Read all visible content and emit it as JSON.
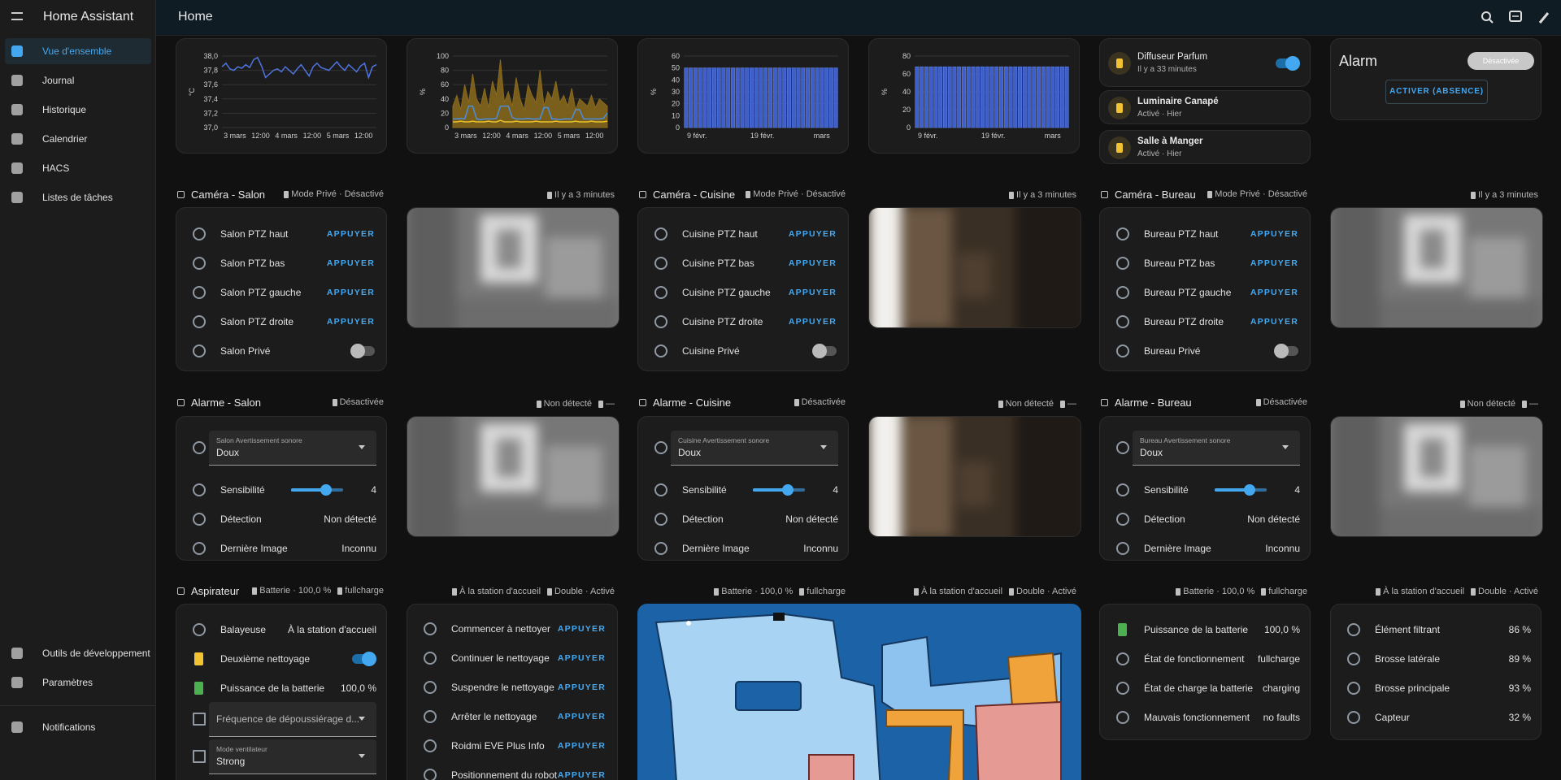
{
  "header": {
    "app": "Home Assistant",
    "title": "Home"
  },
  "sidebar": {
    "items": [
      "Vue d'ensemble",
      "Journal",
      "Historique",
      "Calendrier",
      "HACS",
      "Listes de tâches"
    ],
    "bottom": [
      "Outils de développement",
      "Paramètres"
    ],
    "notifications": "Notifications"
  },
  "charts": [
    {
      "type": "line",
      "unit": "°C",
      "color": "#4f74e0",
      "ylim": [
        37,
        38
      ],
      "yticks": [
        {
          "value": 37,
          "label": "37,0"
        },
        {
          "value": 37.2,
          "label": "37,2"
        },
        {
          "value": 37.4,
          "label": "37,4"
        },
        {
          "value": 37.6,
          "label": "37,6"
        },
        {
          "value": 37.8,
          "label": "37,8"
        },
        {
          "value": 38,
          "label": "38,0"
        }
      ],
      "xlabels": [
        "3 mars",
        "12:00",
        "4 mars",
        "12:00",
        "5 mars",
        "12:00"
      ],
      "values": [
        37.85,
        37.9,
        37.82,
        37.8,
        37.85,
        37.83,
        37.88,
        37.84,
        37.95,
        37.98,
        37.86,
        37.7,
        37.75,
        37.8,
        37.82,
        37.78,
        37.85,
        37.8,
        37.75,
        37.82,
        37.88,
        37.8,
        37.72,
        37.85,
        37.9,
        37.84,
        37.82,
        37.8,
        37.86,
        37.92,
        37.85,
        37.8,
        37.88,
        37.83,
        37.78,
        37.86,
        37.9,
        37.7,
        37.85,
        37.88
      ]
    },
    {
      "type": "area",
      "unit": "%",
      "ylim": [
        0,
        100
      ],
      "yticks": [
        0,
        20,
        40,
        60,
        80,
        100
      ],
      "xlabels": [
        "3 mars",
        "12:00",
        "4 mars",
        "12:00",
        "5 mars",
        "12:00"
      ],
      "series": [
        {
          "color": "#8a6a1c",
          "fill": true,
          "values": [
            30,
            45,
            25,
            60,
            35,
            75,
            40,
            30,
            55,
            28,
            65,
            45,
            95,
            35,
            50,
            30,
            70,
            40,
            25,
            60,
            45,
            35,
            80,
            30,
            50,
            40,
            65,
            35,
            45,
            30,
            55,
            25,
            40,
            35,
            30,
            45,
            28,
            40,
            35,
            30
          ]
        },
        {
          "color": "#4a8fe0",
          "fill": false,
          "values": [
            12,
            12,
            13,
            12,
            30,
            30,
            12,
            11,
            12,
            12,
            12,
            13,
            30,
            30,
            30,
            14,
            12,
            12,
            12,
            13,
            12,
            12,
            12,
            28,
            28,
            12,
            12,
            11,
            12,
            12,
            12,
            25,
            25,
            12,
            12,
            12,
            12,
            12,
            13,
            20
          ]
        },
        {
          "color": "#e8c22a",
          "fill": false,
          "values": [
            8,
            8,
            9,
            8,
            8,
            9,
            8,
            8,
            8,
            9,
            8,
            8,
            10,
            8,
            8,
            8,
            9,
            8,
            8,
            8,
            8,
            9,
            8,
            8,
            8,
            8,
            9,
            8,
            8,
            8,
            8,
            9,
            8,
            8,
            8,
            9,
            8,
            8,
            8,
            9
          ]
        }
      ]
    },
    {
      "type": "bar",
      "unit": "%",
      "color": "#3e5fc9",
      "ylim": [
        0,
        60
      ],
      "yticks": [
        0,
        10,
        20,
        30,
        40,
        50,
        60
      ],
      "xlabels": [
        "9 févr.",
        "19 févr.",
        "mars"
      ],
      "values": [
        50,
        50,
        50,
        50,
        50,
        50,
        50,
        50,
        50,
        50,
        50,
        50,
        50,
        50,
        50,
        50,
        50,
        50,
        50,
        50,
        50,
        50,
        50,
        50,
        50,
        50,
        50,
        50,
        50,
        50,
        50,
        50,
        50
      ]
    },
    {
      "type": "bar",
      "unit": "%",
      "color": "#3e5fc9",
      "ylim": [
        0,
        80
      ],
      "yticks": [
        0,
        20,
        40,
        60,
        80
      ],
      "xlabels": [
        "9 févr.",
        "19 févr.",
        "mars"
      ],
      "values": [
        68,
        68,
        68,
        68,
        68,
        68,
        68,
        68,
        68,
        68,
        68,
        68,
        68,
        68,
        68,
        68,
        68,
        68,
        68,
        68,
        68,
        68,
        68,
        68,
        68,
        68,
        68,
        68,
        68,
        68,
        68,
        68,
        68
      ]
    }
  ],
  "entities": [
    {
      "name": "Diffuseur Parfum",
      "state": "Il y a 33 minutes",
      "toggle": true
    },
    {
      "name": "Luminaire Canapé",
      "state": "Activé · Hier"
    },
    {
      "name": "Salle à Manger",
      "state": "Activé · Hier"
    }
  ],
  "alarm": {
    "title": "Alarm",
    "badge": "Désactivée",
    "action": "ACTIVER (ABSENCE)"
  },
  "cameras": [
    {
      "title": "Caméra - Salon",
      "mode": "Mode Privé · Désactivé",
      "time": "Il y a 3 minutes",
      "rows": [
        {
          "name": "Salon PTZ haut",
          "action": "APPUYER"
        },
        {
          "name": "Salon PTZ bas",
          "action": "APPUYER"
        },
        {
          "name": "Salon PTZ gauche",
          "action": "APPUYER"
        },
        {
          "name": "Salon PTZ droite",
          "action": "APPUYER"
        }
      ],
      "privacy": {
        "name": "Salon Privé",
        "toggle": false
      }
    },
    {
      "title": "Caméra - Cuisine",
      "mode": "Mode Privé · Désactivé",
      "time": "Il y a 3 minutes",
      "rows": [
        {
          "name": "Cuisine PTZ haut",
          "action": "APPUYER"
        },
        {
          "name": "Cuisine PTZ bas",
          "action": "APPUYER"
        },
        {
          "name": "Cuisine PTZ gauche",
          "action": "APPUYER"
        },
        {
          "name": "Cuisine PTZ droite",
          "action": "APPUYER"
        }
      ],
      "privacy": {
        "name": "Cuisine Privé",
        "toggle": false
      }
    },
    {
      "title": "Caméra - Bureau",
      "mode": "Mode Privé · Désactivé",
      "time": "Il y a 3 minutes",
      "rows": [
        {
          "name": "Bureau PTZ haut",
          "action": "APPUYER"
        },
        {
          "name": "Bureau PTZ bas",
          "action": "APPUYER"
        },
        {
          "name": "Bureau PTZ gauche",
          "action": "APPUYER"
        },
        {
          "name": "Bureau PTZ droite",
          "action": "APPUYER"
        }
      ],
      "privacy": {
        "name": "Bureau Privé",
        "toggle": false
      }
    }
  ],
  "alarms": [
    {
      "title": "Alarme - Salon",
      "state": "Désactivée",
      "detect": "Non détecté",
      "image": "—",
      "select": {
        "label": "Salon Avertissement sonore",
        "value": "Doux"
      },
      "sensitivity": {
        "name": "Sensibilité",
        "value": "4"
      },
      "rows": [
        {
          "name": "Détection",
          "value": "Non détecté"
        },
        {
          "name": "Dernière Image",
          "value": "Inconnu"
        }
      ]
    },
    {
      "title": "Alarme - Cuisine",
      "state": "Désactivée",
      "detect": "Non détecté",
      "image": "—",
      "select": {
        "label": "Cuisine Avertissement sonore",
        "value": "Doux"
      },
      "sensitivity": {
        "name": "Sensibilité",
        "value": "4"
      },
      "rows": [
        {
          "name": "Détection",
          "value": "Non détecté"
        },
        {
          "name": "Dernière Image",
          "value": "Inconnu"
        }
      ]
    },
    {
      "title": "Alarme - Bureau",
      "state": "Désactivée",
      "detect": "Non détecté",
      "image": "—",
      "select": {
        "label": "Bureau Avertissement sonore",
        "value": "Doux"
      },
      "sensitivity": {
        "name": "Sensibilité",
        "value": "4"
      },
      "rows": [
        {
          "name": "Détection",
          "value": "Non détecté"
        },
        {
          "name": "Dernière Image",
          "value": "Inconnu"
        }
      ]
    }
  ],
  "vacuum": {
    "title": "Aspirateur",
    "badges": [
      [
        "Batterie · 100,0 %",
        "fullcharge"
      ],
      [
        "À la station d'accueil",
        "Double · Activé"
      ],
      [
        "Batterie · 100,0 %",
        "fullcharge"
      ],
      [
        "À la station d'accueil",
        "Double · Activé"
      ],
      [
        "Batterie · 100,0 %",
        "fullcharge"
      ],
      [
        "À la station d'accueil",
        "Double · Activé"
      ]
    ],
    "main": [
      {
        "name": "Balayeuse",
        "value": "À la station d'accueil"
      },
      {
        "name": "Deuxième nettoyage",
        "toggle": true
      },
      {
        "name": "Puissance de la batterie",
        "value": "100,0 %"
      }
    ],
    "selects": [
      {
        "value": "Fréquence de dépoussiérage d..."
      },
      {
        "label": "Mode ventilateur",
        "value": "Strong"
      }
    ],
    "actions": [
      {
        "name": "Commencer à nettoyer",
        "action": "APPUYER"
      },
      {
        "name": "Continuer le nettoyage",
        "action": "APPUYER"
      },
      {
        "name": "Suspendre le nettoyage",
        "action": "APPUYER"
      },
      {
        "name": "Arrêter le nettoyage",
        "action": "APPUYER"
      },
      {
        "name": "Roidmi EVE Plus Info",
        "action": "APPUYER"
      },
      {
        "name": "Positionnement du robot",
        "action": "APPUYER"
      }
    ],
    "status": [
      {
        "name": "Puissance de la batterie",
        "value": "100,0 %"
      },
      {
        "name": "État de fonctionnement",
        "value": "fullcharge"
      },
      {
        "name": "État de charge la batterie",
        "value": "charging"
      },
      {
        "name": "Mauvais fonctionnement",
        "value": "no faults"
      }
    ],
    "consumables": [
      {
        "name": "Élément filtrant",
        "value": "86 %"
      },
      {
        "name": "Brosse latérale",
        "value": "89 %"
      },
      {
        "name": "Brosse principale",
        "value": "93 %"
      },
      {
        "name": "Capteur",
        "value": "32 %"
      }
    ]
  }
}
